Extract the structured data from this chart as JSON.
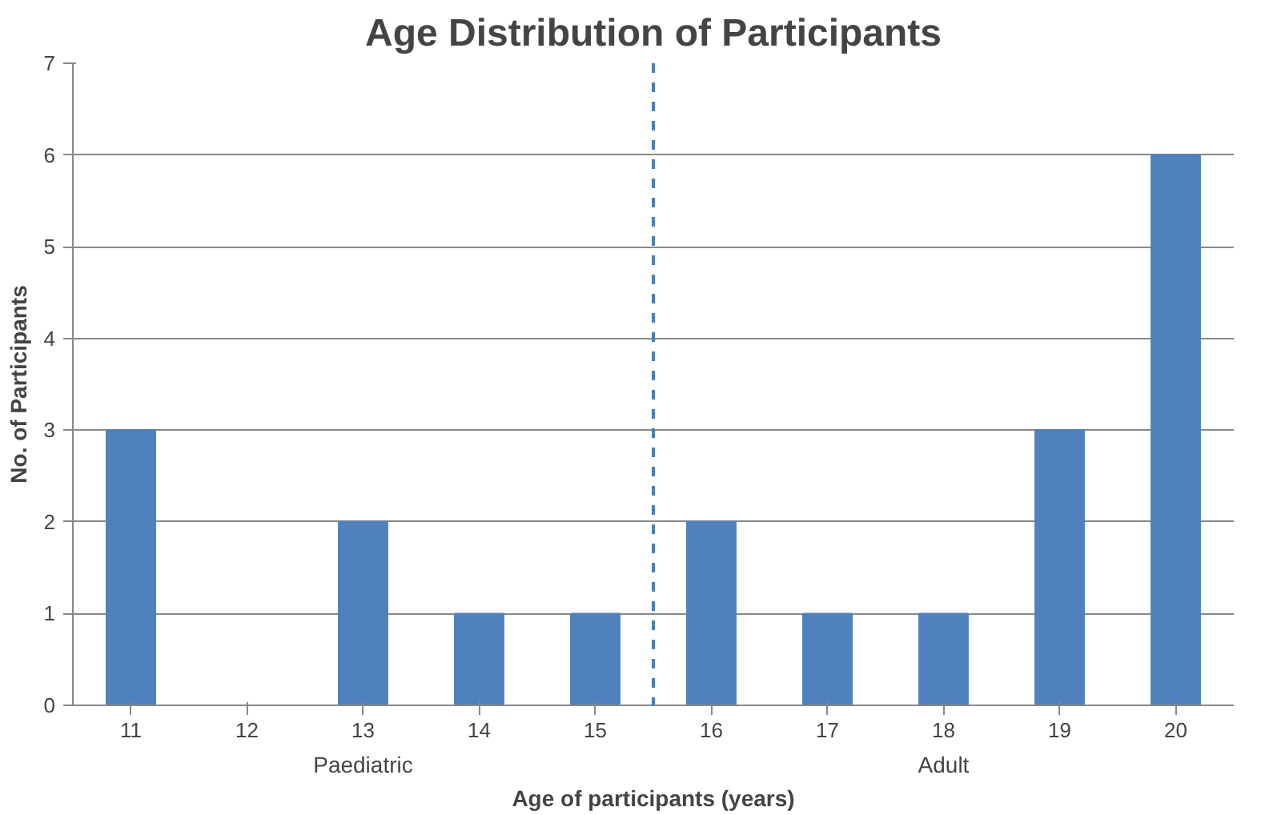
{
  "chart_data": {
    "type": "bar",
    "title": "Age Distribution of Participants",
    "xlabel": "Age of participants (years)",
    "ylabel": "No. of Participants",
    "x": [
      11,
      12,
      13,
      14,
      15,
      16,
      17,
      18,
      19,
      20
    ],
    "values": [
      3,
      0,
      2,
      1,
      1,
      2,
      1,
      1,
      3,
      6
    ],
    "color": "#4f81bd",
    "xlim": [
      10.5,
      20.5
    ],
    "xticks": [
      11,
      12,
      13,
      14,
      15,
      16,
      17,
      18,
      19,
      20
    ],
    "ylim": [
      0,
      7
    ],
    "yticks": [
      0,
      1,
      2,
      3,
      4,
      5,
      6,
      7
    ],
    "grid": "y",
    "ref_lines": [
      {
        "axis": "x",
        "value": 15.5,
        "color": "#4a7ebb",
        "line_style": "dashed"
      }
    ],
    "annotations": [
      "Paediatric",
      "Adult"
    ]
  }
}
